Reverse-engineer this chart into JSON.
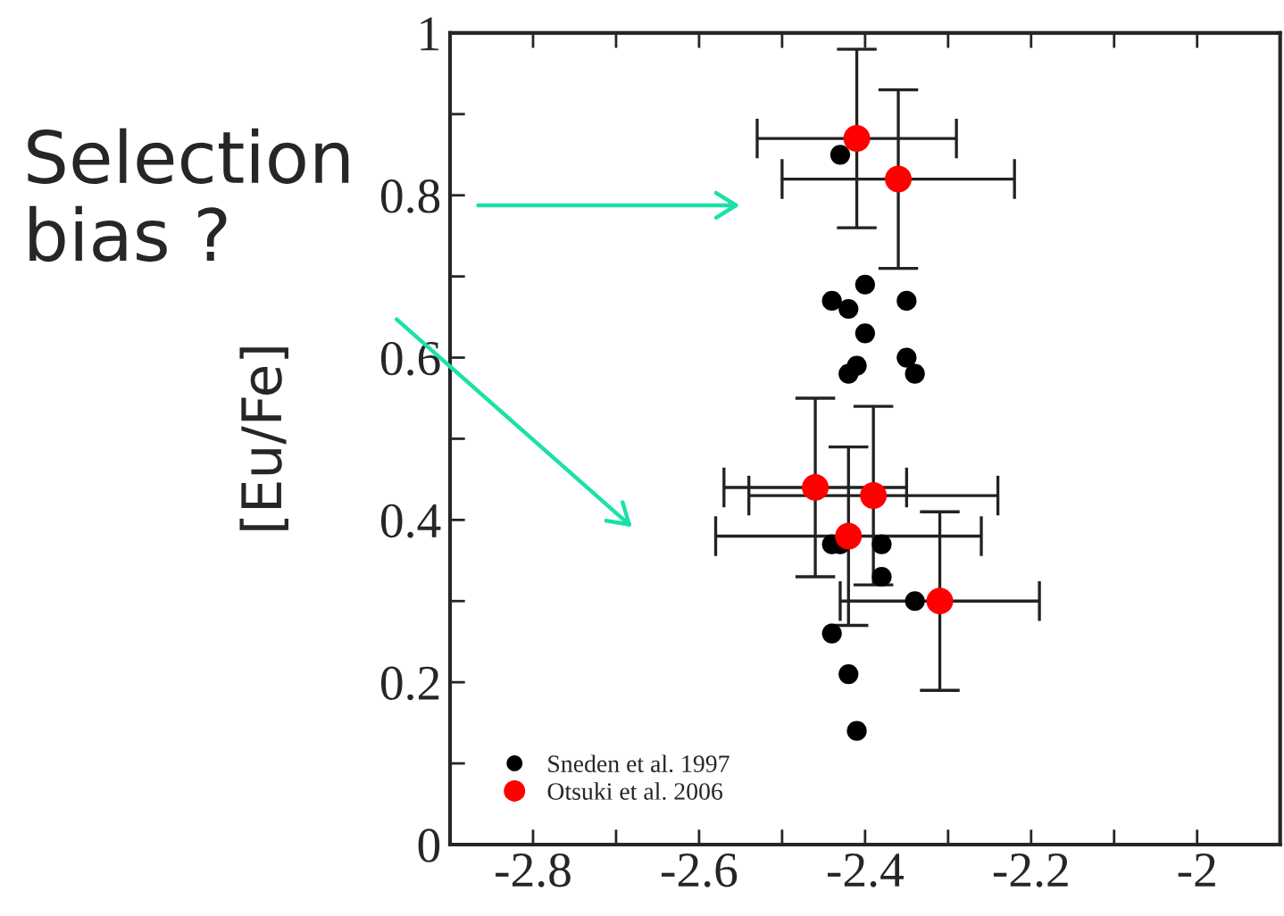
{
  "chart_data": {
    "type": "scatter",
    "ylabel": "[Eu/Fe]",
    "annotations": [
      "Selection\nbias ?"
    ],
    "xlim": [
      -2.9,
      -1.9
    ],
    "xticks": [
      {
        "value": -2.9,
        "label": null
      },
      -2.8,
      {
        "value": -2.7,
        "label": null
      },
      -2.6,
      {
        "value": -2.5,
        "label": null
      },
      -2.4,
      {
        "value": -2.3,
        "label": null
      },
      -2.2,
      {
        "value": -2.1,
        "label": null
      },
      -2,
      {
        "value": -1.9,
        "label": null
      }
    ],
    "ylim": [
      0,
      1
    ],
    "yticks": [
      0,
      {
        "value": 0.1,
        "label": null
      },
      0.2,
      {
        "value": 0.3,
        "label": null
      },
      0.4,
      {
        "value": 0.5,
        "label": null
      },
      0.6,
      {
        "value": 0.7,
        "label": null
      },
      0.8,
      {
        "value": 0.9,
        "label": null
      },
      1
    ],
    "grid": false,
    "legend": "bottom left",
    "marker": "circle",
    "series": [
      {
        "name": "Sneden et al. 1997",
        "color": "#000000",
        "x": [
          -2.43,
          -2.4,
          -2.44,
          -2.42,
          -2.35,
          -2.4,
          -2.41,
          -2.42,
          -2.35,
          -2.34,
          -2.44,
          -2.43,
          -2.38,
          -2.38,
          -2.34,
          -2.44,
          -2.42,
          -2.41
        ],
        "values": [
          0.85,
          0.69,
          0.67,
          0.66,
          0.67,
          0.63,
          0.59,
          0.58,
          0.6,
          0.58,
          0.37,
          0.37,
          0.37,
          0.33,
          0.3,
          0.26,
          0.21,
          0.14
        ]
      },
      {
        "name": "Otsuki et al. 2006",
        "color": "#ff0000",
        "x": [
          -2.41,
          -2.36,
          -2.46,
          -2.39,
          -2.42,
          -2.31
        ],
        "values": [
          0.87,
          0.82,
          0.44,
          0.43,
          0.38,
          0.3
        ],
        "errors": [
          0.11,
          0.11,
          0.11,
          0.11,
          0.11,
          0.11
        ],
        "xerrors": [
          0.12,
          0.14,
          0.11,
          0.15,
          0.16,
          0.12
        ]
      }
    ]
  }
}
